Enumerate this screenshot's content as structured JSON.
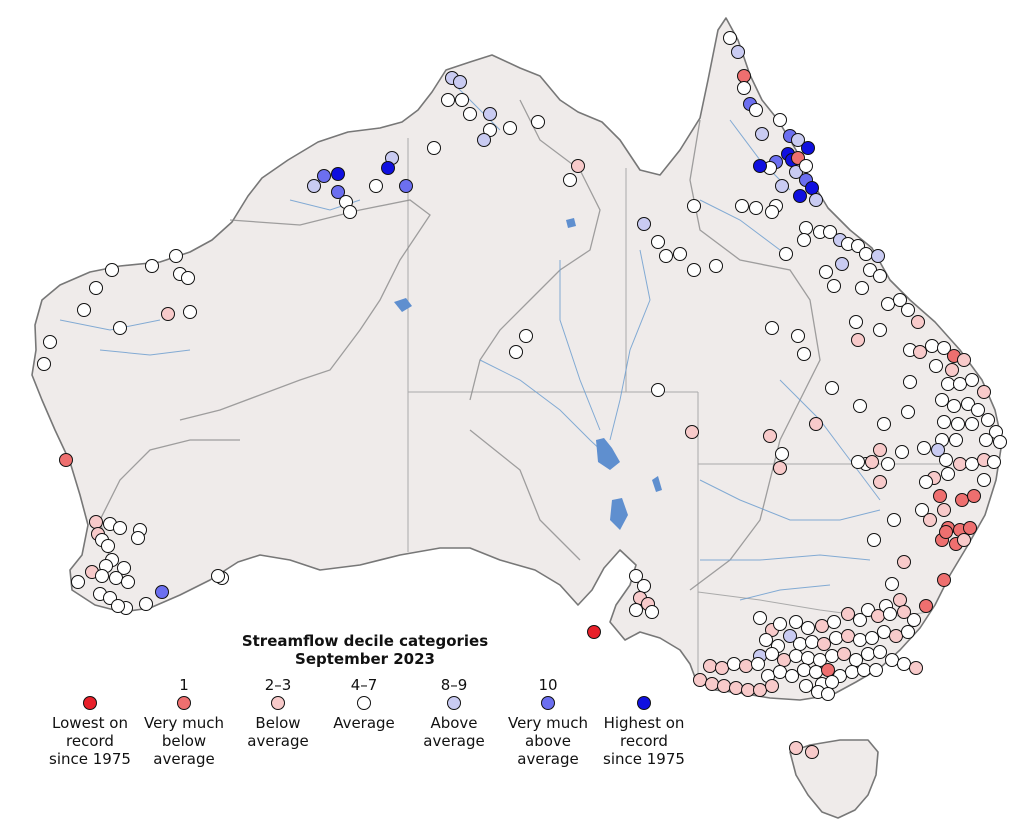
{
  "legend": {
    "title_line1": "Streamflow decile categories",
    "title_line2": "September 2023",
    "categories": [
      {
        "range": "",
        "label": "Lowest on\nrecord\nsince 1975",
        "color": "#e8202a"
      },
      {
        "range": "1",
        "label": "Very much\nbelow\naverage",
        "color": "#ee6f6f"
      },
      {
        "range": "2–3",
        "label": "Below\naverage",
        "color": "#f8caca"
      },
      {
        "range": "4–7",
        "label": "Average",
        "color": "#ffffff"
      },
      {
        "range": "8–9",
        "label": "Above\naverage",
        "color": "#c9cbf2"
      },
      {
        "range": "10",
        "label": "Very much\nabove\naverage",
        "color": "#6c6ff0"
      },
      {
        "range": "",
        "label": "Highest on\nrecord\nsince 1975",
        "color": "#1010e0"
      }
    ]
  },
  "colors": {
    "land": "#efebea",
    "coast": "#777777",
    "border": "#aaaaaa",
    "river": "#6f9fd0",
    "water": "#5f8fcf"
  }
}
